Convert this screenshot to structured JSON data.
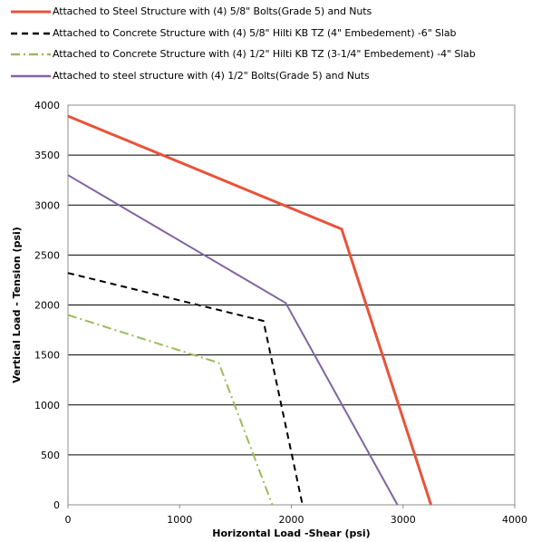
{
  "chart_data": {
    "type": "line",
    "title": "",
    "xlabel": "Horizontal Load -Shear (psi)",
    "ylabel": "Vertical Load - Tension (psi)",
    "xlim": [
      0,
      4000
    ],
    "ylim": [
      0,
      4000
    ],
    "x_ticks": [
      "0",
      "1000",
      "2000",
      "3000",
      "4000"
    ],
    "y_ticks": [
      "0",
      "500",
      "1000",
      "1500",
      "2000",
      "2500",
      "3000",
      "3500",
      "4000"
    ],
    "grid": "horizontal",
    "legend_position": "top",
    "series": [
      {
        "name": "Attached to Steel Structure  with (4) 5/8\" Bolts(Grade 5) and Nuts",
        "color": "#e8533a",
        "dash": "solid",
        "points": [
          [
            0,
            3890
          ],
          [
            2450,
            2760
          ],
          [
            3250,
            0
          ]
        ]
      },
      {
        "name": "Attached to Concrete Structure  with (4) 5/8\" Hilti KB TZ (4\" Embedement) -6\" Slab",
        "color": "#000000",
        "dash": "dashed",
        "points": [
          [
            0,
            2320
          ],
          [
            1750,
            1840
          ],
          [
            2100,
            0
          ]
        ]
      },
      {
        "name": "Attached to Concrete Structure  with (4) 1/2\" Hilti KB TZ (3-1/4\" Embedement) -4\" Slab",
        "color": "#9bbb59",
        "dash": "dashdot",
        "points": [
          [
            0,
            1900
          ],
          [
            1350,
            1420
          ],
          [
            1830,
            0
          ]
        ]
      },
      {
        "name": "Attached to steel structure  with (4) 1/2\" Bolts(Grade 5) and Nuts",
        "color": "#8064a2",
        "dash": "solid",
        "points": [
          [
            0,
            3300
          ],
          [
            1950,
            2020
          ],
          [
            2950,
            0
          ]
        ]
      }
    ]
  }
}
